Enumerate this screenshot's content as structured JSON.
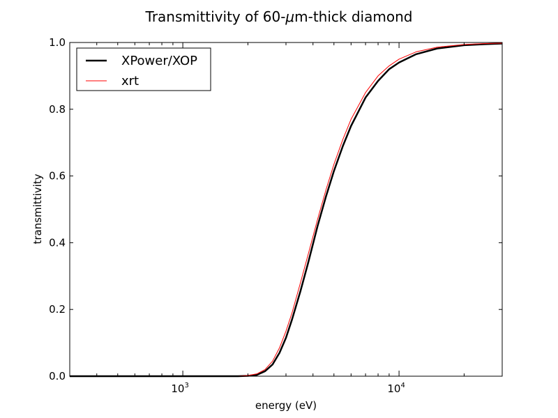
{
  "chart_data": {
    "type": "line",
    "title_parts": [
      "Transmittivity of 60-",
      "μ",
      "m-thick diamond"
    ],
    "xlabel": "energy (eV)",
    "ylabel": "transmittivity",
    "xscale": "log",
    "xlim": [
      300,
      30000
    ],
    "ylim": [
      0.0,
      1.0
    ],
    "grid": false,
    "legend_position": "top-left",
    "x_major_ticks": [
      {
        "base": "10",
        "exp": "3",
        "value": 1000
      },
      {
        "base": "10",
        "exp": "4",
        "value": 10000
      }
    ],
    "y_ticks": [
      {
        "value": 0.0,
        "label": "0.0"
      },
      {
        "value": 0.2,
        "label": "0.2"
      },
      {
        "value": 0.4,
        "label": "0.4"
      },
      {
        "value": 0.6,
        "label": "0.6"
      },
      {
        "value": 0.8,
        "label": "0.8"
      },
      {
        "value": 1.0,
        "label": "1.0"
      }
    ],
    "series": [
      {
        "name": "XPower/XOP",
        "color": "#000000",
        "line": "thick",
        "x": [
          300,
          1000,
          1800,
          2000,
          2200,
          2400,
          2600,
          2800,
          3000,
          3200,
          3500,
          3800,
          4200,
          4600,
          5000,
          5500,
          6000,
          7000,
          8000,
          9000,
          10000,
          12000,
          15000,
          20000,
          25000,
          30000
        ],
        "y": [
          0.0,
          0.0,
          0.0,
          0.001,
          0.004,
          0.015,
          0.035,
          0.07,
          0.115,
          0.17,
          0.255,
          0.34,
          0.45,
          0.54,
          0.615,
          0.69,
          0.75,
          0.835,
          0.885,
          0.92,
          0.94,
          0.965,
          0.982,
          0.992,
          0.995,
          0.997
        ]
      },
      {
        "name": "xrt",
        "color": "#ff0000",
        "line": "thin",
        "x": [
          300,
          1000,
          1800,
          2000,
          2200,
          2400,
          2600,
          2800,
          3000,
          3200,
          3500,
          3800,
          4200,
          4600,
          5000,
          5500,
          6000,
          7000,
          8000,
          9000,
          10000,
          12000,
          15000,
          20000,
          25000,
          30000
        ],
        "y": [
          0.0,
          0.0,
          0.0,
          0.002,
          0.007,
          0.02,
          0.045,
          0.085,
          0.135,
          0.19,
          0.28,
          0.365,
          0.47,
          0.56,
          0.635,
          0.71,
          0.77,
          0.85,
          0.9,
          0.93,
          0.95,
          0.972,
          0.986,
          0.994,
          0.997,
          0.998
        ]
      }
    ]
  }
}
